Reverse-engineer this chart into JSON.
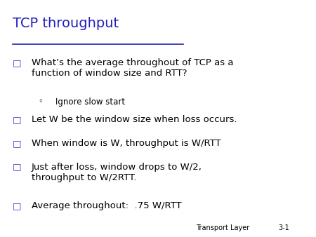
{
  "title": "TCP throughput",
  "title_color": "#2222BB",
  "title_fontsize": 14,
  "background_color": "#FFFFFF",
  "bullet_color": "#3333CC",
  "text_color": "#000000",
  "footer_text": "Transport Layer",
  "footer_number": "3-1",
  "bullet_items": [
    {
      "level": 1,
      "text": "What’s the average throughout of TCP as a\nfunction of window size and RTT?"
    },
    {
      "level": 2,
      "text": "Ignore slow start"
    },
    {
      "level": 1,
      "text": "Let W be the window size when loss occurs."
    },
    {
      "level": 1,
      "text": "When window is W, throughput is W/RTT"
    },
    {
      "level": 1,
      "text": "Just after loss, window drops to W/2,\nthroughput to W/2RTT."
    },
    {
      "level": 1,
      "text": "Average throughout:  .75 W/RTT"
    }
  ],
  "body_fontsize": 9.5,
  "sub_fontsize": 8.5,
  "footer_fontsize": 7
}
